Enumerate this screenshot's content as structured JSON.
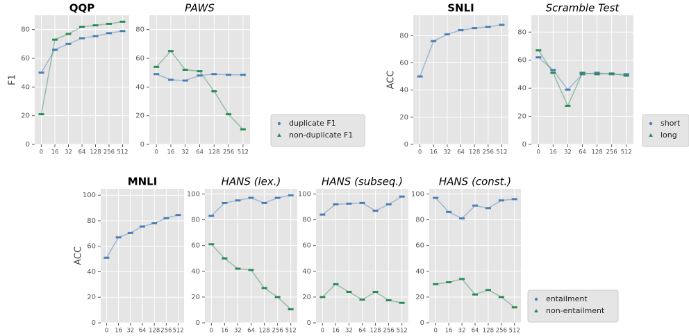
{
  "chart_data": [
    {
      "type": "line",
      "title": "QQP",
      "title_font": "bold",
      "ylabel": "F1",
      "categories": [
        "0",
        "16",
        "32",
        "64",
        "128",
        "256",
        "512"
      ],
      "series": [
        {
          "color": "#4a7fb5",
          "values": [
            50,
            66,
            70,
            74,
            75.5,
            77.5,
            79
          ]
        },
        {
          "color": "#2e8b57",
          "values": [
            21,
            73,
            77,
            82,
            83,
            84,
            85.5
          ]
        }
      ],
      "ylim": [
        0,
        90
      ],
      "yticks": [
        0,
        20,
        40,
        60,
        80
      ],
      "grid": true
    },
    {
      "type": "line",
      "title": "PAWS",
      "title_font": "italic",
      "categories": [
        "0",
        "16",
        "32",
        "64",
        "128",
        "256",
        "512"
      ],
      "series": [
        {
          "name": "duplicate F1",
          "color": "#4a7fb5",
          "values": [
            49,
            45,
            44.5,
            48,
            49,
            48.5,
            48.5
          ]
        },
        {
          "name": "non-duplicate F1",
          "color": "#2e8b57",
          "values": [
            54,
            65,
            52,
            51,
            37,
            21,
            10.5
          ]
        }
      ],
      "ylim": [
        0,
        90
      ],
      "yticks": [
        0,
        20,
        40,
        60,
        80
      ],
      "grid": true,
      "legend": true
    },
    {
      "type": "line",
      "title": "SNLI",
      "title_font": "bold",
      "ylabel": "ACC",
      "categories": [
        "0",
        "16",
        "32",
        "64",
        "128",
        "256",
        "512"
      ],
      "series": [
        {
          "color": "#4a7fb5",
          "values": [
            50,
            76,
            81,
            84,
            85.5,
            86.5,
            88
          ]
        }
      ],
      "ylim": [
        0,
        95
      ],
      "yticks": [
        0,
        20,
        40,
        60,
        80
      ],
      "grid": true
    },
    {
      "type": "line",
      "title": "Scramble Test",
      "title_font": "italic",
      "categories": [
        "0",
        "16",
        "32",
        "64",
        "128",
        "256",
        "512"
      ],
      "series": [
        {
          "name": "short",
          "color": "#4a7fb5",
          "values": [
            62,
            53,
            39,
            50,
            51,
            50,
            50
          ]
        },
        {
          "name": "long",
          "color": "#2e8b57",
          "values": [
            67,
            51,
            27.5,
            51,
            50,
            50.5,
            49
          ]
        }
      ],
      "ylim": [
        0,
        92
      ],
      "yticks": [
        0,
        20,
        40,
        60,
        80
      ],
      "grid": true,
      "legend": true
    },
    {
      "type": "line",
      "title": "MNLI",
      "title_font": "bold",
      "ylabel": "ACC",
      "categories": [
        "0",
        "16",
        "32",
        "64",
        "128",
        "256",
        "512"
      ],
      "series": [
        {
          "color": "#4a7fb5",
          "values": [
            51,
            67,
            70.5,
            75.5,
            78,
            82,
            84.5
          ]
        }
      ],
      "ylim": [
        0,
        105
      ],
      "yticks": [
        0,
        20,
        40,
        60,
        80,
        100
      ],
      "grid": true
    },
    {
      "type": "line",
      "title": "HANS (lex.)",
      "title_font": "italic",
      "categories": [
        "0",
        "16",
        "32",
        "64",
        "128",
        "256",
        "512"
      ],
      "series": [
        {
          "color": "#4a7fb5",
          "values": [
            83,
            93,
            95,
            97,
            93,
            97,
            99
          ]
        },
        {
          "color": "#2e8b57",
          "values": [
            61,
            50,
            42,
            41,
            27,
            20,
            10.5
          ]
        }
      ],
      "ylim": [
        0,
        104
      ],
      "yticks": [
        0,
        20,
        40,
        60,
        80,
        100
      ],
      "grid": true
    },
    {
      "type": "line",
      "title": "HANS (subseq.)",
      "title_font": "italic",
      "categories": [
        "0",
        "16",
        "32",
        "64",
        "128",
        "256",
        "512"
      ],
      "series": [
        {
          "color": "#4a7fb5",
          "values": [
            84,
            92,
            92.5,
            93,
            87,
            92,
            98
          ]
        },
        {
          "color": "#2e8b57",
          "values": [
            20,
            30,
            24,
            18,
            24,
            17.5,
            15.5
          ]
        }
      ],
      "ylim": [
        0,
        104
      ],
      "yticks": [
        0,
        20,
        40,
        60,
        80,
        100
      ],
      "grid": true
    },
    {
      "type": "line",
      "title": "HANS (const.)",
      "title_font": "italic",
      "categories": [
        "0",
        "16",
        "32",
        "64",
        "128",
        "256",
        "512"
      ],
      "series": [
        {
          "name": "entailment",
          "color": "#4a7fb5",
          "values": [
            97,
            86,
            81,
            91,
            89,
            95,
            96
          ]
        },
        {
          "name": "non-entailment",
          "color": "#2e8b57",
          "values": [
            30,
            31.5,
            34,
            22,
            25.5,
            20,
            12
          ]
        }
      ],
      "ylim": [
        0,
        104
      ],
      "yticks": [
        0,
        20,
        40,
        60,
        80,
        100
      ],
      "grid": true,
      "legend": true
    }
  ]
}
